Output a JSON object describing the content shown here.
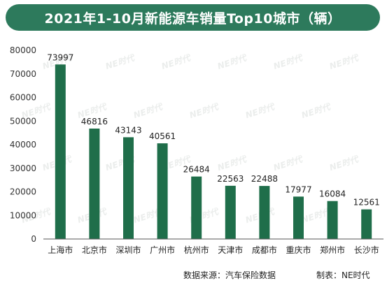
{
  "title": "2021年1-10月新能源车销量Top10城市（辆）",
  "footer": {
    "source": "数据来源：汽车保险数据",
    "made_by": "制表：NE时代"
  },
  "watermark_text": "NE时代",
  "colors": {
    "bar": "#1f6e4a",
    "title_bg": "#2d7a5c",
    "axis": "#555555"
  },
  "chart_data": {
    "type": "bar",
    "title": "2021年1-10月新能源车销量Top10城市（辆）",
    "categories": [
      "上海市",
      "北京市",
      "深圳市",
      "广州市",
      "杭州市",
      "天津市",
      "成都市",
      "重庆市",
      "郑州市",
      "长沙市"
    ],
    "values": [
      73997,
      46816,
      43143,
      40561,
      26484,
      22563,
      22488,
      17977,
      16084,
      12561
    ],
    "xlabel": "",
    "ylabel": "",
    "ylim": [
      0,
      80000
    ],
    "yticks": [
      0,
      10000,
      20000,
      30000,
      40000,
      50000,
      60000,
      70000,
      80000
    ],
    "data_labels": true,
    "grid": false,
    "legend": "none"
  }
}
